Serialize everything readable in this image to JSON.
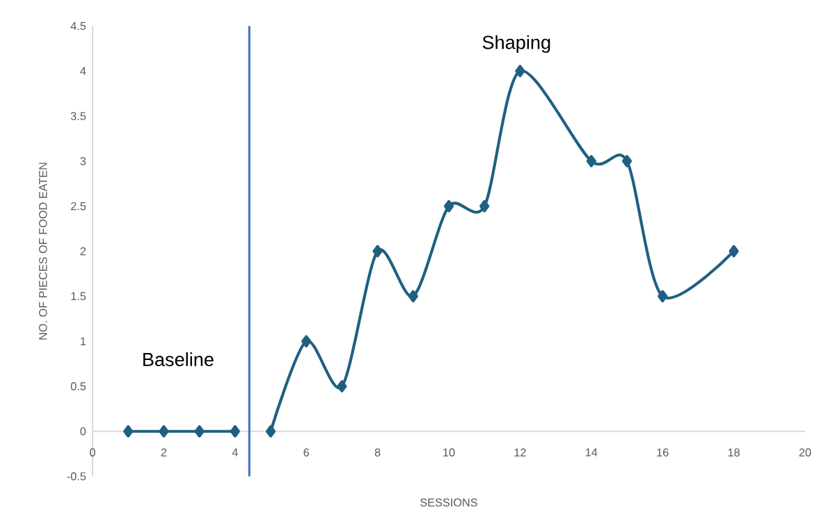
{
  "chart_data": {
    "type": "line",
    "xlabel": "SESSIONS",
    "ylabel": "NO. OF PIECES OF FOOD EATEN",
    "series": [
      {
        "color": "#205f82",
        "x": [
          1,
          2,
          3,
          4
        ],
        "values": [
          0,
          0,
          0,
          0
        ]
      },
      {
        "color": "#205f82",
        "x": [
          5,
          6,
          7,
          8,
          9,
          10,
          11,
          12,
          14,
          15,
          16,
          18
        ],
        "values": [
          0,
          1,
          0.5,
          2,
          1.5,
          2.5,
          2.5,
          4,
          3,
          3,
          1.5,
          2
        ]
      }
    ],
    "xlim": [
      0,
      20
    ],
    "xticks": [
      0,
      2,
      4,
      6,
      8,
      10,
      12,
      14,
      16,
      18,
      20
    ],
    "ylim": [
      -0.5,
      4.5
    ],
    "yticks": [
      -0.5,
      0,
      0.5,
      1,
      1.5,
      2,
      2.5,
      3,
      3.5,
      4,
      4.5
    ],
    "ref_lines": [
      {
        "axis": "x",
        "value": 4.4,
        "color": "#4472c4"
      }
    ],
    "annotations": [
      "Baseline",
      "Shaping"
    ],
    "marker": "diamond",
    "line_style": "solid"
  }
}
